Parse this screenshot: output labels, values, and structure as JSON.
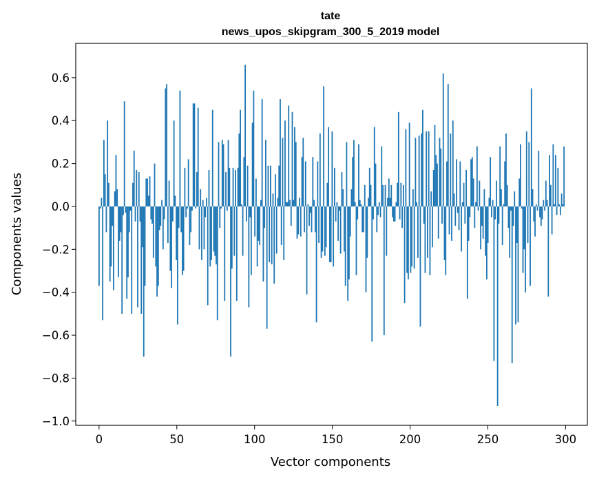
{
  "chart_data": {
    "type": "bar",
    "title_lines": [
      "tate",
      "news_upos_skipgram_300_5_2019 model"
    ],
    "xlabel": "Vector components",
    "ylabel": "Components values",
    "xlim": [
      -15,
      314
    ],
    "ylim": [
      -1.02,
      0.76
    ],
    "xticks": [
      0,
      50,
      100,
      150,
      200,
      250,
      300
    ],
    "xtick_labels": [
      "0",
      "50",
      "100",
      "150",
      "200",
      "250",
      "300"
    ],
    "yticks": [
      -1.0,
      -0.8,
      -0.6,
      -0.4,
      -0.2,
      0.0,
      0.2,
      0.4,
      0.6
    ],
    "ytick_labels": [
      "−1.0",
      "−0.8",
      "−0.6",
      "−0.4",
      "−0.2",
      "0.0",
      "0.2",
      "0.4",
      "0.6"
    ],
    "bar_color": "#1f77b4",
    "grid": false,
    "values": [
      -0.37,
      -0.01,
      0.04,
      -0.53,
      0.31,
      0.15,
      -0.12,
      0.4,
      0.11,
      -0.35,
      -0.28,
      -0.09,
      -0.39,
      0.07,
      0.24,
      0.08,
      -0.33,
      -0.16,
      -0.12,
      -0.5,
      -0.04,
      0.49,
      -0.03,
      -0.43,
      -0.33,
      -0.12,
      -0.02,
      -0.5,
      0.11,
      0.26,
      -0.07,
      0.17,
      -0.47,
      0.16,
      -0.07,
      -0.5,
      -0.19,
      -0.7,
      -0.37,
      0.13,
      0.13,
      0.05,
      0.14,
      -0.06,
      -0.08,
      -0.24,
      0.2,
      -0.28,
      -0.42,
      -0.37,
      -0.11,
      -0.09,
      0.03,
      -0.2,
      -0.06,
      0.55,
      0.57,
      -0.17,
      0.12,
      -0.3,
      -0.38,
      -0.07,
      0.4,
      0.05,
      -0.25,
      -0.55,
      -0.1,
      0.54,
      -0.12,
      -0.32,
      -0.3,
      0.18,
      -0.05,
      -0.01,
      0.22,
      -0.18,
      -0.12,
      -0.02,
      0.48,
      0.48,
      -0.01,
      0.16,
      0.46,
      -0.2,
      0.08,
      -0.25,
      0.03,
      -0.2,
      -0.05,
      0.04,
      -0.46,
      0.17,
      -0.28,
      -0.25,
      0.45,
      -0.21,
      -0.23,
      -0.27,
      -0.53,
      0.3,
      -0.1,
      -0.01,
      0.31,
      0.29,
      -0.44,
      0.16,
      -0.02,
      0.31,
      0.18,
      -0.7,
      -0.29,
      0.18,
      -0.23,
      0.17,
      -0.44,
      0.18,
      0.34,
      0.45,
      0.01,
      -0.23,
      0.23,
      0.66,
      -0.07,
      0.19,
      -0.47,
      -0.05,
      -0.32,
      0.39,
      0.54,
      -0.14,
      0.13,
      -0.28,
      -0.16,
      -0.18,
      0.03,
      0.5,
      -0.35,
      -0.1,
      0.31,
      -0.57,
      0.19,
      -0.26,
      0.19,
      -0.27,
      0.06,
      -0.36,
      0.15,
      -0.22,
      0.04,
      0.19,
      0.5,
      -0.18,
      0.32,
      -0.25,
      0.4,
      0.02,
      0.02,
      0.47,
      0.03,
      -0.09,
      0.44,
      0.03,
      0.37,
      0.3,
      -0.15,
      -0.13,
      0.04,
      -0.14,
      0.23,
      0.32,
      -0.12,
      0.21,
      -0.41,
      0.01,
      -0.09,
      -0.03,
      -0.12,
      0.23,
      0.03,
      -0.12,
      -0.54,
      0.21,
      -0.17,
      0.34,
      -0.24,
      -0.21,
      0.56,
      -0.23,
      -0.19,
      0.11,
      0.37,
      -0.26,
      -0.26,
      0.35,
      -0.28,
      0.18,
      -0.07,
      0.02,
      -0.16,
      -0.02,
      -0.22,
      0.16,
      0.08,
      -0.21,
      -0.37,
      0.3,
      -0.44,
      -0.34,
      -0.14,
      0.08,
      0.23,
      0.31,
      0.02,
      -0.32,
      -0.06,
      0.29,
      0.03,
      0.01,
      -0.12,
      -0.12,
      0.1,
      -0.4,
      -0.24,
      0.04,
      0.18,
      0.1,
      -0.63,
      -0.06,
      0.37,
      0.2,
      -0.12,
      -0.04,
      0.02,
      -0.05,
      0.28,
      0.1,
      -0.6,
      0.1,
      -0.23,
      0.04,
      0.13,
      0.04,
      0.1,
      -0.05,
      -0.07,
      -0.07,
      0.02,
      0.11,
      0.44,
      -0.06,
      0.11,
      -0.1,
      0.1,
      -0.45,
      0.36,
      -0.31,
      -0.34,
      0.39,
      -0.31,
      -0.28,
      0.08,
      -0.29,
      0.32,
      0.02,
      -0.24,
      0.33,
      -0.56,
      0.34,
      0.45,
      -0.08,
      -0.31,
      0.35,
      -0.24,
      0.35,
      -0.32,
      0.07,
      -0.19,
      0.17,
      0.38,
      0.24,
      0.2,
      -0.15,
      0.32,
      0.27,
      -0.08,
      0.62,
      -0.25,
      -0.32,
      0.21,
      0.57,
      -0.13,
      0.34,
      -0.16,
      0.4,
      0.06,
      -0.09,
      0.22,
      -0.03,
      -0.11,
      0.21,
      -0.21,
      0.02,
      0.11,
      -0.08,
      0.17,
      -0.43,
      -0.16,
      -0.05,
      0.22,
      0.23,
      0.13,
      -0.1,
      0.02,
      0.28,
      -0.02,
      0.12,
      -0.2,
      -0.09,
      -0.15,
      0.08,
      -0.23,
      -0.34,
      -0.17,
      0.04,
      0.23,
      -0.05,
      0.03,
      -0.72,
      -0.06,
      0.12,
      -0.93,
      -0.08,
      0.28,
      0.08,
      -0.18,
      0.01,
      0.21,
      0.34,
      0.1,
      -0.1,
      -0.24,
      -0.02,
      -0.73,
      -0.09,
      0.07,
      -0.55,
      -0.17,
      -0.54,
      0.13,
      0.29,
      -0.01,
      -0.31,
      -0.2,
      -0.4,
      0.35,
      -0.17,
      0.3,
      -0.37,
      0.55,
      0.08,
      -0.07,
      -0.14,
      0.01,
      -0.02,
      0.26,
      -0.05,
      -0.09,
      -0.06,
      0.03,
      -0.02,
      0.12,
      0.03,
      -0.42,
      0.24,
      0.1,
      -0.13,
      0.29,
      0.01,
      0.24,
      -0.04,
      0.18,
      0.01,
      -0.04,
      0.06,
      0.01,
      0.28
    ]
  }
}
